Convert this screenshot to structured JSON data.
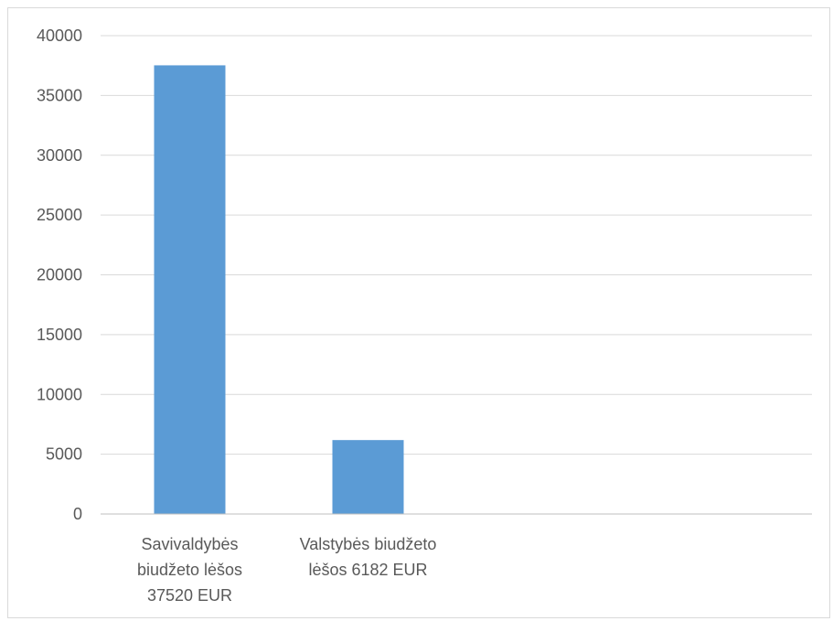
{
  "chart_data": {
    "type": "bar",
    "categories": [
      [
        "Savivaldybės",
        "biudžeto lėšos",
        "37520 EUR"
      ],
      [
        "Valstybės biudžeto",
        "lėšos 6182 EUR"
      ]
    ],
    "values": [
      37520,
      6182
    ],
    "ylim": [
      0,
      40000
    ],
    "yticks": [
      0,
      5000,
      10000,
      15000,
      20000,
      25000,
      30000,
      35000,
      40000
    ],
    "grid": true,
    "bar_color": "#5b9bd5",
    "grid_color": "#d9d9d9",
    "axis_color": "#bfbfbf"
  }
}
